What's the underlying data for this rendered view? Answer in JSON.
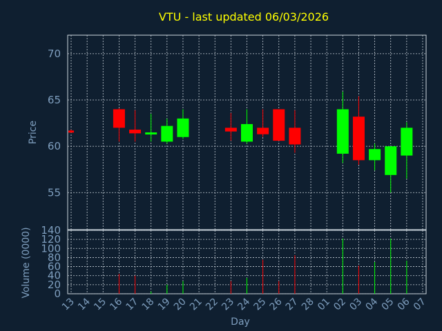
{
  "chart_data": {
    "type": "candlestick",
    "title": "VTU - last updated 06/03/2026",
    "xlabel": "Day",
    "ylabel": "Price",
    "volume_label": "Volume (0000)",
    "x": [
      "13",
      "14",
      "15",
      "16",
      "17",
      "18",
      "19",
      "20",
      "21",
      "22",
      "23",
      "24",
      "25",
      "26",
      "27",
      "28",
      "01",
      "02",
      "03",
      "04",
      "05",
      "06",
      "07"
    ],
    "price_ylim": [
      51,
      72
    ],
    "price_ticks": [
      55,
      60,
      65,
      70
    ],
    "volume_ylim": [
      0,
      140
    ],
    "volume_ticks": [
      0,
      20,
      40,
      60,
      80,
      100,
      120,
      140
    ],
    "grid": true,
    "candles": [
      {
        "day": "13",
        "open": 61.7,
        "high": 61.8,
        "low": 61.5,
        "close": 61.6
      },
      {
        "day": "16",
        "open": 64.0,
        "high": 64.1,
        "low": 60.5,
        "close": 62.0
      },
      {
        "day": "17",
        "open": 61.8,
        "high": 63.9,
        "low": 60.5,
        "close": 61.4
      },
      {
        "day": "18",
        "open": 61.3,
        "high": 63.5,
        "low": 60.5,
        "close": 61.5
      },
      {
        "day": "19",
        "open": 60.5,
        "high": 63.0,
        "low": 60.3,
        "close": 62.2
      },
      {
        "day": "20",
        "open": 61.0,
        "high": 64.0,
        "low": 60.8,
        "close": 63.0
      },
      {
        "day": "23",
        "open": 62.0,
        "high": 63.6,
        "low": 60.6,
        "close": 61.6
      },
      {
        "day": "24",
        "open": 60.5,
        "high": 64.0,
        "low": 60.3,
        "close": 62.4
      },
      {
        "day": "25",
        "open": 62.0,
        "high": 64.0,
        "low": 61.0,
        "close": 61.3
      },
      {
        "day": "26",
        "open": 64.0,
        "high": 64.0,
        "low": 60.6,
        "close": 60.6
      },
      {
        "day": "27",
        "open": 62.0,
        "high": 63.9,
        "low": 59.3,
        "close": 60.2
      },
      {
        "day": "02",
        "open": 59.2,
        "high": 65.9,
        "low": 58.2,
        "close": 64.0
      },
      {
        "day": "03",
        "open": 63.2,
        "high": 65.4,
        "low": 58.0,
        "close": 58.5
      },
      {
        "day": "04",
        "open": 58.5,
        "high": 60.3,
        "low": 57.4,
        "close": 59.7
      },
      {
        "day": "05",
        "open": 56.9,
        "high": 60.0,
        "low": 55.0,
        "close": 60.0
      },
      {
        "day": "06",
        "open": 59.0,
        "high": 62.6,
        "low": 56.5,
        "close": 62.0
      }
    ],
    "volume": [
      {
        "day": "13",
        "value": 0
      },
      {
        "day": "16",
        "value": 44
      },
      {
        "day": "17",
        "value": 40
      },
      {
        "day": "18",
        "value": 5
      },
      {
        "day": "19",
        "value": 20
      },
      {
        "day": "20",
        "value": 28
      },
      {
        "day": "23",
        "value": 28
      },
      {
        "day": "24",
        "value": 35
      },
      {
        "day": "25",
        "value": 75
      },
      {
        "day": "26",
        "value": 28
      },
      {
        "day": "27",
        "value": 85
      },
      {
        "day": "02",
        "value": 122
      },
      {
        "day": "03",
        "value": 62
      },
      {
        "day": "04",
        "value": 70
      },
      {
        "day": "05",
        "value": 122
      },
      {
        "day": "06",
        "value": 73
      }
    ],
    "colors": {
      "background": "#0f1f30",
      "frame": "#cfd8e0",
      "grid": "#c8d0d8",
      "axis_text": "#7f9fbf",
      "title": "#ffff00",
      "up": "#00ff00",
      "down": "#ff0000"
    }
  }
}
